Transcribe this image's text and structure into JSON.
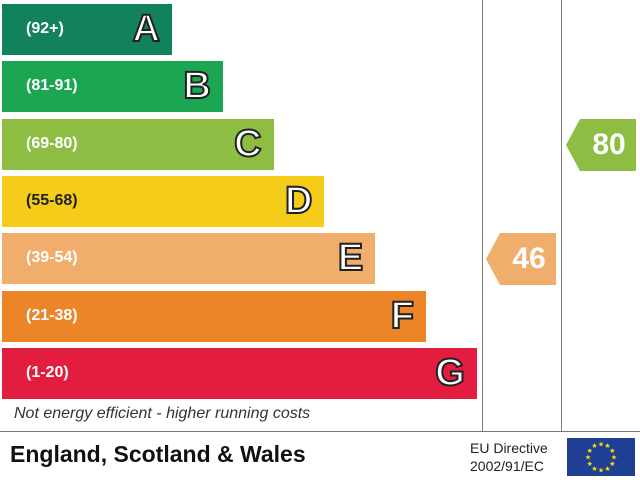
{
  "chart_data": {
    "type": "bar",
    "title": "",
    "bands": [
      {
        "range": "(92+)",
        "letter": "A",
        "color": "#12825a",
        "length": 1
      },
      {
        "range": "(81-91)",
        "letter": "B",
        "color": "#1ca652",
        "length": 2
      },
      {
        "range": "(69-80)",
        "letter": "C",
        "color": "#8dbe43",
        "length": 3
      },
      {
        "range": "(55-68)",
        "letter": "D",
        "color": "#f6cc1b",
        "length": 4
      },
      {
        "range": "(39-54)",
        "letter": "E",
        "color": "#f1ad6c",
        "length": 5
      },
      {
        "range": "(21-38)",
        "letter": "F",
        "color": "#ec8428",
        "length": 6
      },
      {
        "range": "(1-20)",
        "letter": "G",
        "color": "#e31d3f",
        "length": 7
      }
    ],
    "current": {
      "value": 46,
      "band": "E",
      "color": "#f1ad6c"
    },
    "potential": {
      "value": 80,
      "band": "C",
      "color": "#8dbe43"
    }
  },
  "footer": {
    "note": "Not energy efficient - higher running costs",
    "region": "England, Scotland & Wales",
    "directive_line1": "EU Directive",
    "directive_line2": "2002/91/EC",
    "flag_icon": "eu-flag-icon"
  }
}
